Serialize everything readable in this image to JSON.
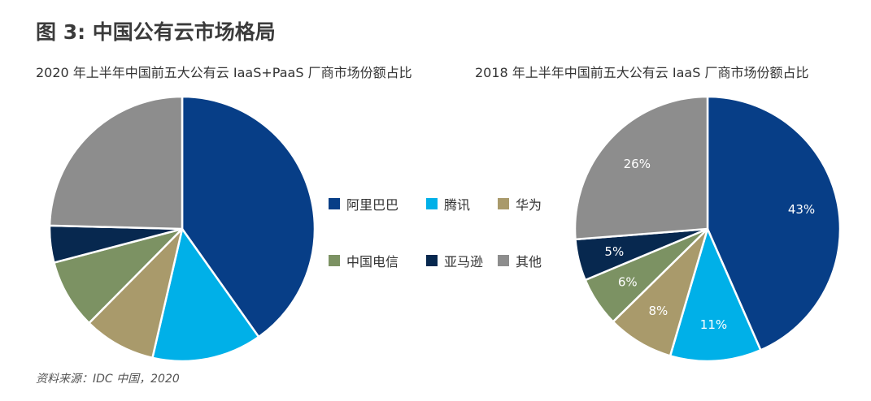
{
  "figure_title": "图 3: 中国公有云市场格局",
  "source_note": "资料来源：IDC 中国，2020",
  "legend": [
    {
      "label": "阿里巴巴",
      "color": "#073e87"
    },
    {
      "label": "腾讯",
      "color": "#00b0e8"
    },
    {
      "label": "华为",
      "color": "#a99a6b"
    },
    {
      "label": "中国电信",
      "color": "#7c9263"
    },
    {
      "label": "亚马逊",
      "color": "#07284f"
    },
    {
      "label": "其他",
      "color": "#8d8d8d"
    }
  ],
  "chart_data": [
    {
      "type": "pie",
      "title": "2020 年上半年中国前五大公有云 IaaS+PaaS 厂商市场份额占比",
      "categories": [
        "阿里巴巴",
        "腾讯",
        "华为",
        "中国电信",
        "亚马逊",
        "其他"
      ],
      "values": [
        40.2,
        13.4,
        8.8,
        8.5,
        4.5,
        24.6
      ],
      "colors": [
        "#073e87",
        "#00b0e8",
        "#a99a6b",
        "#7c9263",
        "#07284f",
        "#8d8d8d"
      ],
      "data_labels": [],
      "legend_position": "center-right"
    },
    {
      "type": "pie",
      "title": "2018 年上半年中国前五大公有云 IaaS 厂商市场份额占比",
      "categories": [
        "阿里巴巴",
        "腾讯",
        "华为",
        "中国电信",
        "亚马逊",
        "其他"
      ],
      "values": [
        43,
        11,
        8,
        6,
        5,
        26
      ],
      "colors": [
        "#073e87",
        "#00b0e8",
        "#a99a6b",
        "#7c9263",
        "#07284f",
        "#8d8d8d"
      ],
      "data_labels": [
        "43%",
        "11%",
        "8%",
        "6%",
        "5%",
        "26%"
      ],
      "legend_position": "center-left"
    }
  ]
}
